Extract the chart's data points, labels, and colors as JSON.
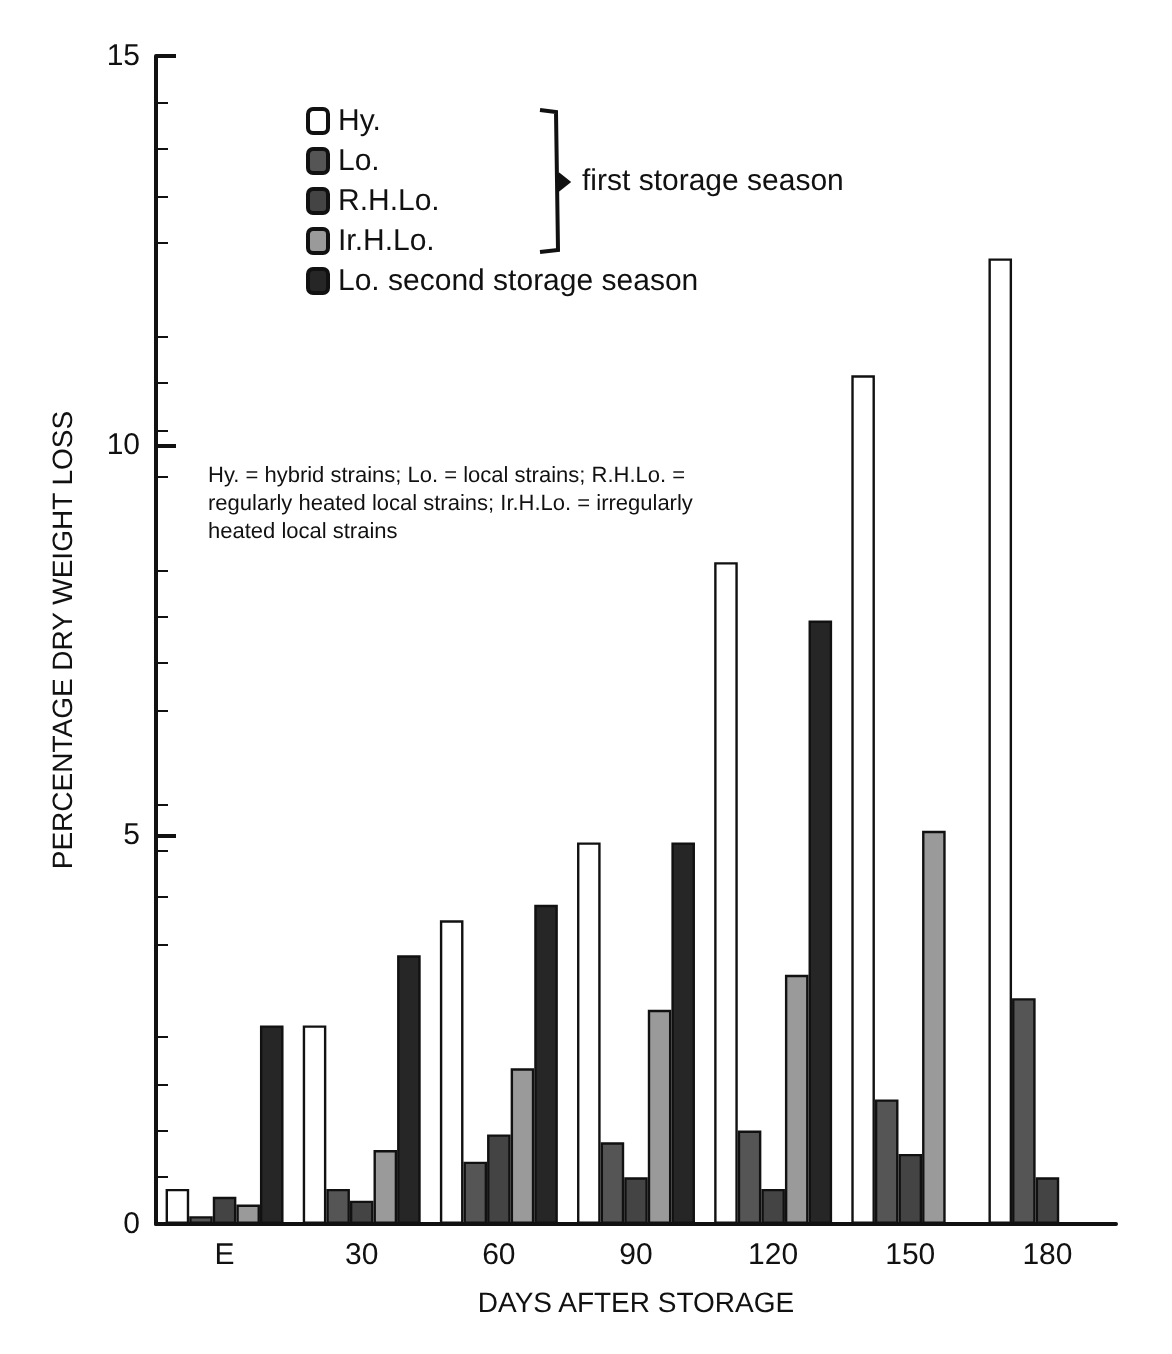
{
  "chart_data": {
    "type": "bar",
    "xlabel": "DAYS AFTER STORAGE",
    "ylabel": "PERCENTAGE DRY WEIGHT LOSS",
    "categories": [
      "E",
      "30",
      "60",
      "90",
      "120",
      "150",
      "180"
    ],
    "series": [
      {
        "name": "Hy.",
        "color": "#ffffff",
        "values": [
          0.45,
          2.55,
          3.9,
          4.9,
          8.5,
          10.9,
          12.4
        ]
      },
      {
        "name": "Lo.",
        "color": "#555555",
        "values": [
          0.1,
          0.45,
          0.8,
          1.05,
          1.2,
          1.6,
          2.9
        ]
      },
      {
        "name": "R.H.Lo.",
        "color": "#444444",
        "values": [
          0.35,
          0.3,
          1.15,
          0.6,
          0.45,
          0.9,
          0.6
        ]
      },
      {
        "name": "Ir.H.Lo.",
        "color": "#9a9a9a",
        "values": [
          0.25,
          0.95,
          2.0,
          2.75,
          3.2,
          5.05,
          null
        ]
      },
      {
        "name": "Lo. second storage season",
        "color": "#262626",
        "values": [
          2.55,
          3.45,
          4.1,
          4.9,
          7.75,
          null,
          null
        ]
      }
    ],
    "ylim": [
      0,
      15
    ],
    "yticks": [
      0,
      5,
      10,
      15
    ],
    "legend": "top left",
    "annotations": [
      "first storage season",
      "Hy. = hybrid strains; Lo. = local strains; R.H.Lo. = regularly heated local strains; Ir.H.Lo. = irregularly heated local strains"
    ]
  }
}
